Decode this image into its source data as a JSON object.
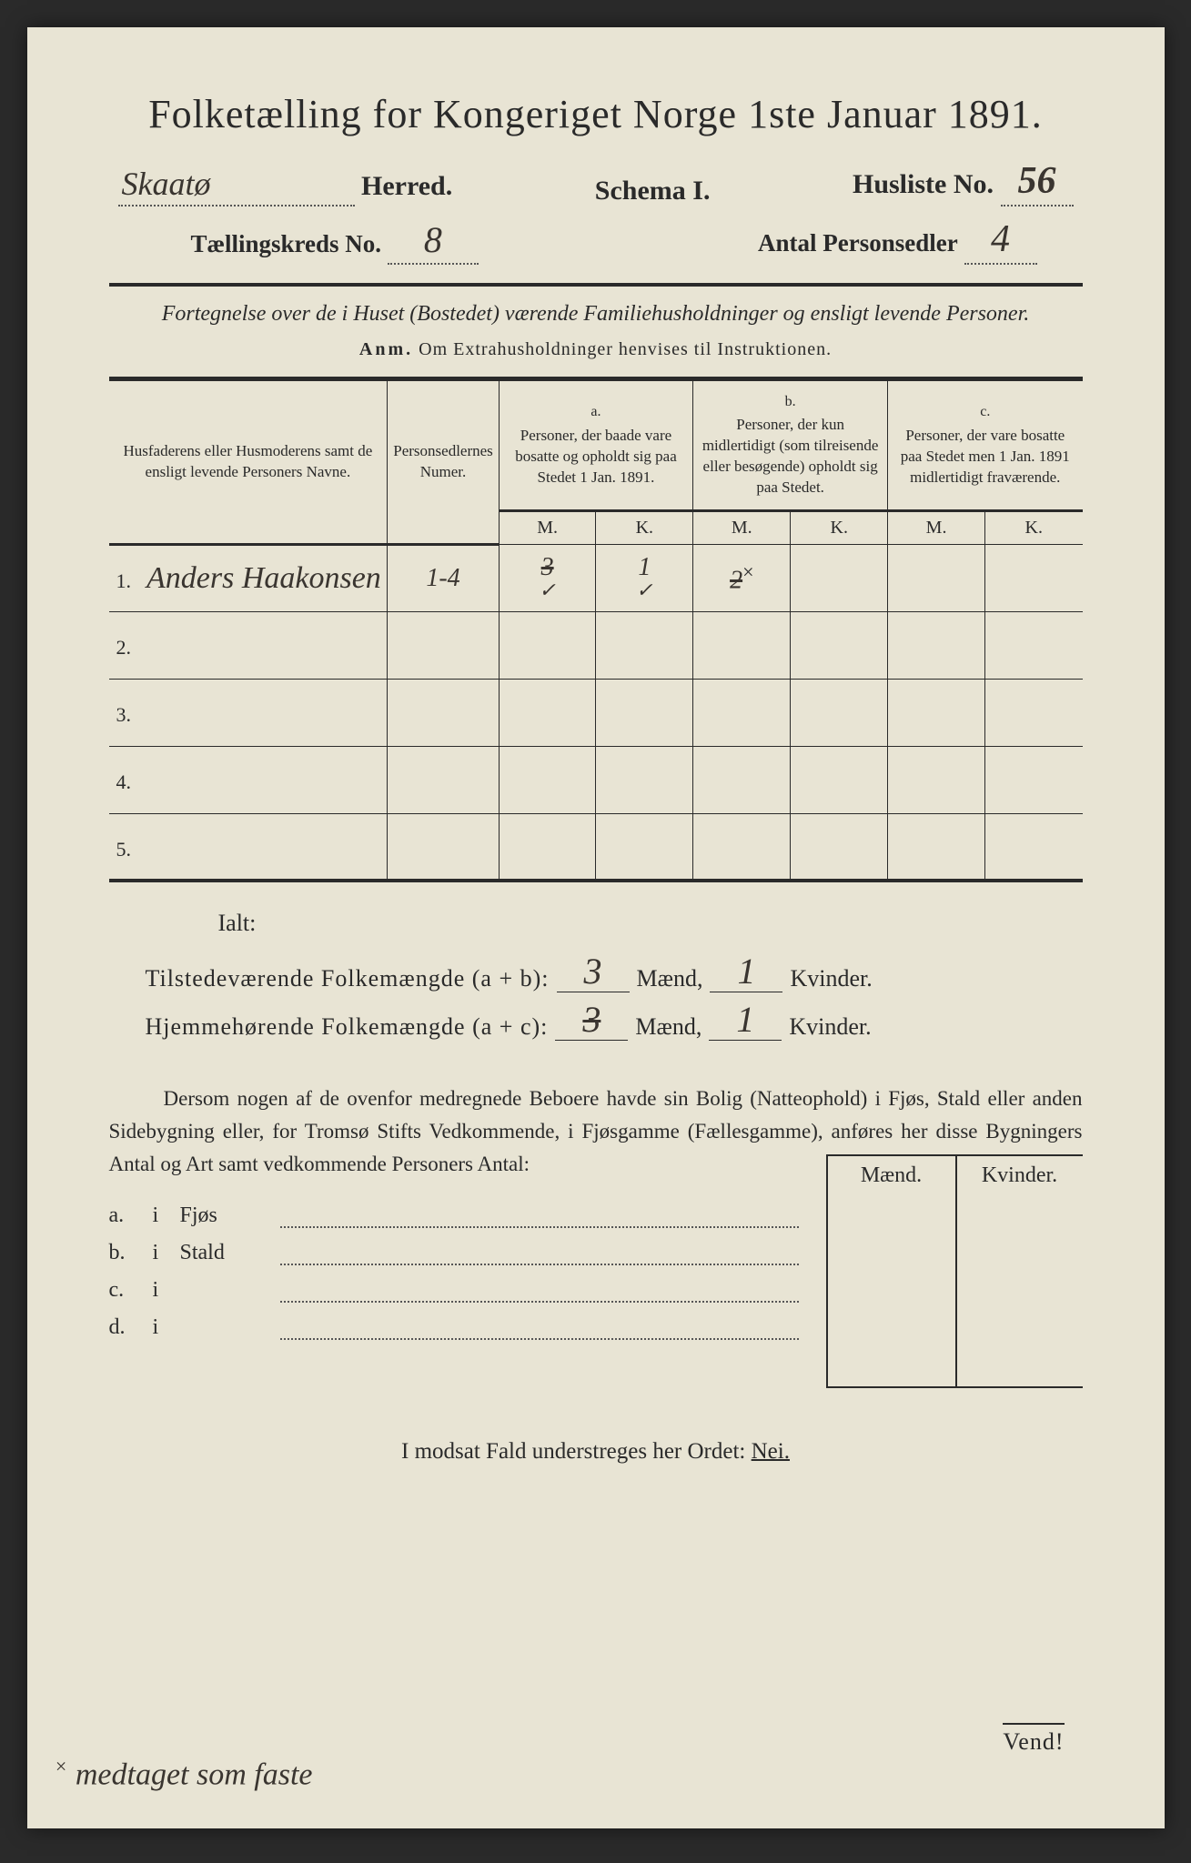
{
  "header": {
    "title": "Folketælling for Kongeriget Norge 1ste Januar 1891.",
    "herred_value": "Skaatø",
    "herred_label": "Herred.",
    "schema_label": "Schema I.",
    "husliste_label": "Husliste No.",
    "husliste_value": "56",
    "kreds_label": "Tællingskreds No.",
    "kreds_value": "8",
    "sedler_label": "Antal Personsedler",
    "sedler_value": "4"
  },
  "subtitle": "Fortegnelse over de i Huset (Bostedet) værende Familiehusholdninger og ensligt levende Personer.",
  "anm_label": "Anm.",
  "anm_text": "Om Extrahusholdninger henvises til Instruktionen.",
  "table": {
    "col_names": "Husfaderens eller Husmoderens samt de ensligt levende Personers Navne.",
    "col_numer": "Personsedlernes Numer.",
    "group_a_label": "a.",
    "group_a": "Personer, der baade vare bosatte og opholdt sig paa Stedet 1 Jan. 1891.",
    "group_b_label": "b.",
    "group_b": "Personer, der kun midlertidigt (som tilreisende eller besøgende) opholdt sig paa Stedet.",
    "group_c_label": "c.",
    "group_c": "Personer, der vare bosatte paa Stedet men 1 Jan. 1891 midlertidigt fraværende.",
    "m": "M.",
    "k": "K.",
    "rows": [
      {
        "n": "1.",
        "name": "Anders Haakonsen",
        "num": "1-4",
        "a_m": "3",
        "a_m_strike": true,
        "a_k": "1",
        "b_m": "2",
        "b_m_strike": true,
        "b_star": true,
        "b_k": "",
        "c_m": "",
        "c_k": "",
        "checks": true
      },
      {
        "n": "2.",
        "name": "",
        "num": "",
        "a_m": "",
        "a_k": "",
        "b_m": "",
        "b_k": "",
        "c_m": "",
        "c_k": ""
      },
      {
        "n": "3.",
        "name": "",
        "num": "",
        "a_m": "",
        "a_k": "",
        "b_m": "",
        "b_k": "",
        "c_m": "",
        "c_k": ""
      },
      {
        "n": "4.",
        "name": "",
        "num": "",
        "a_m": "",
        "a_k": "",
        "b_m": "",
        "b_k": "",
        "c_m": "",
        "c_k": ""
      },
      {
        "n": "5.",
        "name": "",
        "num": "",
        "a_m": "",
        "a_k": "",
        "b_m": "",
        "b_k": "",
        "c_m": "",
        "c_k": ""
      }
    ]
  },
  "totals": {
    "ialt": "Ialt:",
    "present_label": "Tilstedeværende Folkemængde (a + b):",
    "resident_label": "Hjemmehørende Folkemængde (a + c):",
    "maend": "Mænd,",
    "kvinder": "Kvinder.",
    "present_m": "3",
    "present_k": "1",
    "resident_m": "3",
    "resident_m_strike": true,
    "resident_k": "1"
  },
  "paragraph": "Dersom nogen af de ovenfor medregnede Beboere havde sin Bolig (Natteophold) i Fjøs, Stald eller anden Sidebygning eller, for Tromsø Stifts Vedkommende, i Fjøsgamme (Fællesgamme), anføres her disse Bygningers Antal og Art samt vedkommende Personers Antal:",
  "outbuildings": {
    "maend": "Mænd.",
    "kvinder": "Kvinder.",
    "rows": [
      {
        "k": "a.",
        "i": "i",
        "t": "Fjøs"
      },
      {
        "k": "b.",
        "i": "i",
        "t": "Stald"
      },
      {
        "k": "c.",
        "i": "i",
        "t": ""
      },
      {
        "k": "d.",
        "i": "i",
        "t": ""
      }
    ]
  },
  "modsat": "I modsat Fald understreges her Ordet:",
  "modsat_word": "Nei.",
  "vend": "Vend!",
  "footnote": "medtaget som faste",
  "colors": {
    "paper": "#e8e4d4",
    "ink": "#2a2a2a",
    "script": "#3a3530"
  }
}
